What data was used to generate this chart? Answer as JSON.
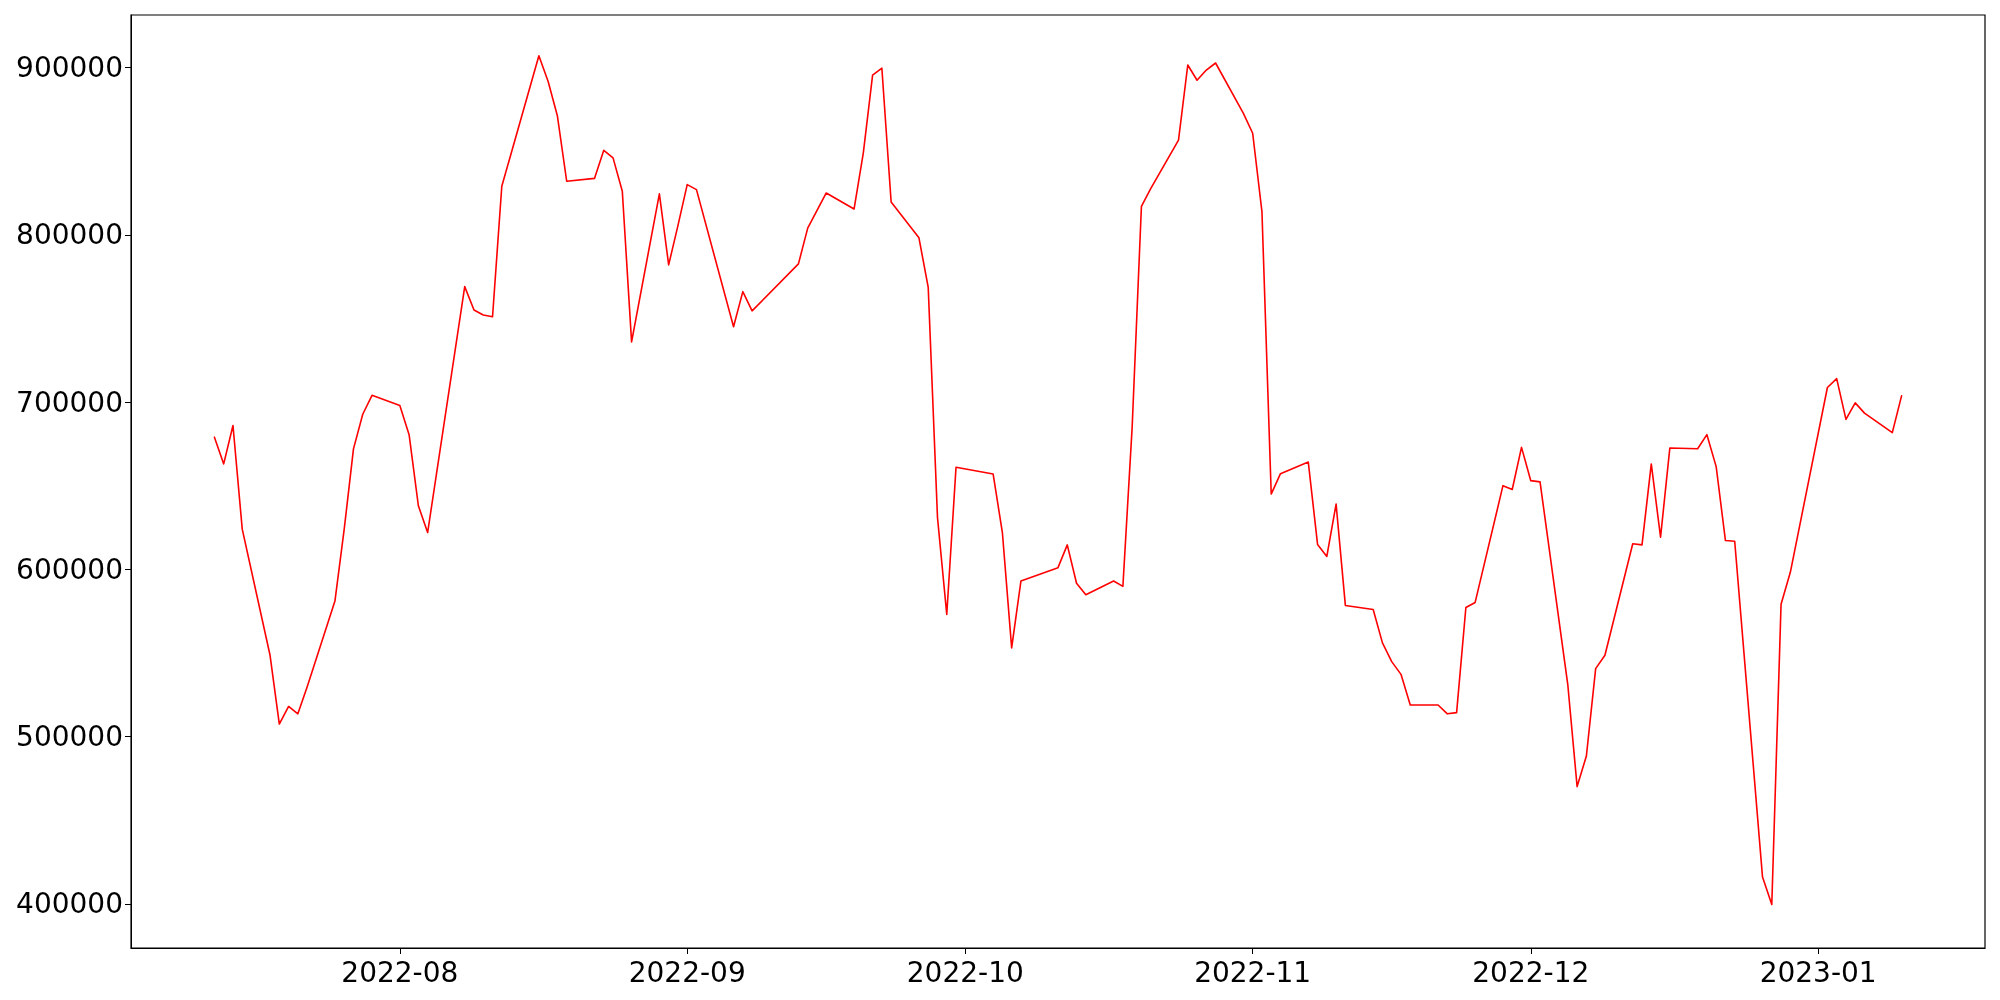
{
  "chart_data": {
    "type": "line",
    "x": [
      "2022-07-12",
      "2022-07-13",
      "2022-07-14",
      "2022-07-15",
      "2022-07-18",
      "2022-07-19",
      "2022-07-20",
      "2022-07-21",
      "2022-07-22",
      "2022-07-25",
      "2022-07-26",
      "2022-07-27",
      "2022-07-28",
      "2022-07-29",
      "2022-08-01",
      "2022-08-02",
      "2022-08-03",
      "2022-08-04",
      "2022-08-08",
      "2022-08-09",
      "2022-08-10",
      "2022-08-11",
      "2022-08-12",
      "2022-08-16",
      "2022-08-17",
      "2022-08-18",
      "2022-08-19",
      "2022-08-22",
      "2022-08-23",
      "2022-08-24",
      "2022-08-25",
      "2022-08-26",
      "2022-08-29",
      "2022-08-30",
      "2022-08-31",
      "2022-09-01",
      "2022-09-02",
      "2022-09-06",
      "2022-09-07",
      "2022-09-08",
      "2022-09-13",
      "2022-09-14",
      "2022-09-16",
      "2022-09-19",
      "2022-09-20",
      "2022-09-21",
      "2022-09-22",
      "2022-09-23",
      "2022-09-26",
      "2022-09-27",
      "2022-09-28",
      "2022-09-29",
      "2022-09-30",
      "2022-10-04",
      "2022-10-05",
      "2022-10-06",
      "2022-10-07",
      "2022-10-11",
      "2022-10-12",
      "2022-10-13",
      "2022-10-14",
      "2022-10-17",
      "2022-10-18",
      "2022-10-19",
      "2022-10-20",
      "2022-10-21",
      "2022-10-24",
      "2022-10-25",
      "2022-10-26",
      "2022-10-27",
      "2022-10-28",
      "2022-10-31",
      "2022-11-01",
      "2022-11-02",
      "2022-11-03",
      "2022-11-04",
      "2022-11-07",
      "2022-11-08",
      "2022-11-09",
      "2022-11-10",
      "2022-11-11",
      "2022-11-14",
      "2022-11-15",
      "2022-11-16",
      "2022-11-17",
      "2022-11-18",
      "2022-11-21",
      "2022-11-22",
      "2022-11-23",
      "2022-11-24",
      "2022-11-25",
      "2022-11-28",
      "2022-11-29",
      "2022-11-30",
      "2022-12-01",
      "2022-12-02",
      "2022-12-05",
      "2022-12-06",
      "2022-12-07",
      "2022-12-08",
      "2022-12-09",
      "2022-12-12",
      "2022-12-13",
      "2022-12-14",
      "2022-12-15",
      "2022-12-16",
      "2022-12-19",
      "2022-12-20",
      "2022-12-21",
      "2022-12-22",
      "2022-12-23",
      "2022-12-26",
      "2022-12-27",
      "2022-12-28",
      "2022-12-29",
      "2023-01-02",
      "2023-01-03",
      "2023-01-04",
      "2023-01-05",
      "2023-01-06",
      "2023-01-09",
      "2023-01-10"
    ],
    "series": [
      {
        "color": "#ff0000",
        "values": [
          679000,
          663000,
          686000,
          624000,
          548600,
          507500,
          518000,
          513600,
          529600,
          581000,
          624000,
          672000,
          692700,
          704000,
          698000,
          680500,
          638000,
          622000,
          769000,
          755000,
          752000,
          751000,
          829000,
          907000,
          891600,
          871000,
          832000,
          833700,
          850500,
          846000,
          826000,
          736000,
          824500,
          782000,
          805500,
          830000,
          827000,
          745000,
          766000,
          754500,
          782600,
          804000,
          825000,
          815400,
          849000,
          895400,
          899600,
          819600,
          798200,
          768500,
          631000,
          573000,
          661000,
          657000,
          622000,
          553000,
          593000,
          601000,
          614600,
          591700,
          584800,
          593000,
          589800,
          685000,
          817000,
          827600,
          856600,
          901500,
          892400,
          898500,
          902700,
          872600,
          860700,
          813900,
          645000,
          657200,
          664100,
          614900,
          607700,
          639000,
          578400,
          576000,
          556000,
          544800,
          537200,
          518900,
          518900,
          513600,
          514300,
          577200,
          580200,
          650000,
          647700,
          672900,
          653000,
          652300,
          530700,
          470100,
          488400,
          540600,
          548600,
          615300,
          614600,
          663000,
          619200,
          672500,
          672100,
          680500,
          661400,
          617200,
          616800,
          416000,
          399600,
          579100,
          598200,
          708700,
          714000,
          689600,
          699500,
          693400,
          681700,
          703700
        ]
      }
    ],
    "xlim": [
      "2022-07-03",
      "2023-01-19"
    ],
    "xticks": [
      {
        "value": "2022-08-01",
        "label": "2022-08"
      },
      {
        "value": "2022-09-01",
        "label": "2022-09"
      },
      {
        "value": "2022-10-01",
        "label": "2022-10"
      },
      {
        "value": "2022-11-01",
        "label": "2022-11"
      },
      {
        "value": "2022-12-01",
        "label": "2022-12"
      },
      {
        "value": "2023-01-01",
        "label": "2023-01"
      }
    ],
    "ylim": [
      373600,
      931400
    ],
    "yticks": [
      400000,
      500000,
      600000,
      700000,
      800000,
      900000
    ],
    "marker": "none",
    "line_style": "solid"
  }
}
